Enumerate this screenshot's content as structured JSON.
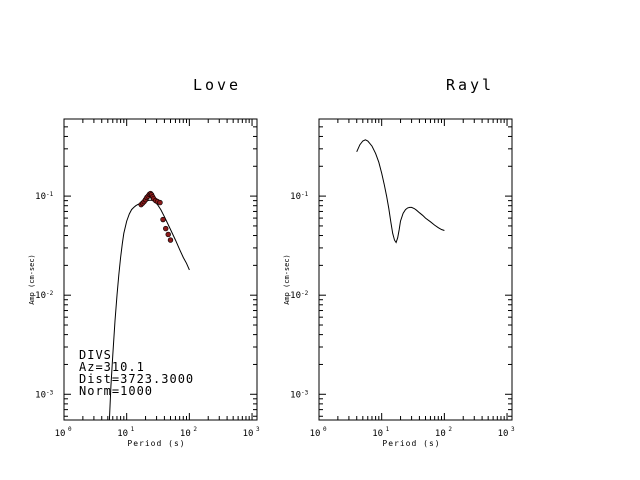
{
  "chart_data": [
    {
      "type": "line",
      "title": "Love",
      "xlabel": "Period (s)",
      "ylabel": "Amp (cm-sec)",
      "xscale": "log",
      "yscale": "log",
      "xlim": [
        1,
        1200
      ],
      "ylim": [
        0.00055,
        0.6
      ],
      "x_ticks": [
        {
          "base": "10",
          "exp": "0"
        },
        {
          "base": "10",
          "exp": "1"
        },
        {
          "base": "10",
          "exp": "2"
        },
        {
          "base": "10",
          "exp": "3"
        }
      ],
      "y_ticks": [
        {
          "base": "10",
          "exp": "-1",
          "value": 0.1
        },
        {
          "base": "10",
          "exp": "-2",
          "value": 0.01
        },
        {
          "base": "10",
          "exp": "-3",
          "value": 0.001
        }
      ],
      "series": [
        {
          "kind": "line",
          "x": [
            5.3,
            5.6,
            6,
            6.5,
            7,
            7.5,
            8,
            8.5,
            9,
            10,
            11,
            12,
            13,
            14,
            15,
            17,
            19,
            21,
            23,
            25,
            28,
            31,
            35,
            40,
            45,
            50,
            60,
            70,
            80,
            90,
            100
          ],
          "y": [
            0.00055,
            0.0012,
            0.0025,
            0.0055,
            0.01,
            0.016,
            0.024,
            0.033,
            0.042,
            0.056,
            0.066,
            0.073,
            0.077,
            0.08,
            0.082,
            0.085,
            0.088,
            0.09,
            0.091,
            0.091,
            0.088,
            0.082,
            0.073,
            0.062,
            0.053,
            0.046,
            0.036,
            0.029,
            0.024,
            0.021,
            0.018
          ]
        },
        {
          "kind": "points",
          "x": [
            17,
            18,
            19,
            20,
            21,
            22,
            23,
            24,
            25,
            26,
            27,
            29,
            31,
            34,
            38,
            42,
            46,
            50
          ],
          "y": [
            0.082,
            0.085,
            0.088,
            0.092,
            0.097,
            0.1,
            0.104,
            0.106,
            0.103,
            0.098,
            0.094,
            0.09,
            0.088,
            0.086,
            0.058,
            0.047,
            0.041,
            0.036
          ]
        }
      ],
      "annotations": [
        "DIVS",
        "Az=310.1",
        "Dist=3723.3000",
        "Norm=1000"
      ]
    },
    {
      "type": "line",
      "title": "Rayl",
      "xlabel": "Period (s)",
      "ylabel": "Amp (cm-sec)",
      "xscale": "log",
      "yscale": "log",
      "xlim": [
        1,
        1200
      ],
      "ylim": [
        0.00055,
        0.6
      ],
      "x_ticks": [
        {
          "base": "10",
          "exp": "0"
        },
        {
          "base": "10",
          "exp": "1"
        },
        {
          "base": "10",
          "exp": "2"
        },
        {
          "base": "10",
          "exp": "3"
        }
      ],
      "y_ticks": [
        {
          "base": "10",
          "exp": "-1",
          "value": 0.1
        },
        {
          "base": "10",
          "exp": "-2",
          "value": 0.01
        },
        {
          "base": "10",
          "exp": "-3",
          "value": 0.001
        }
      ],
      "series": [
        {
          "kind": "line",
          "x": [
            4,
            4.5,
            5,
            5.5,
            6,
            7,
            8,
            9,
            10,
            11,
            12,
            13,
            14,
            15,
            16,
            17,
            18,
            19,
            20,
            22,
            24,
            26,
            28,
            30,
            33,
            36,
            40,
            45,
            50,
            60,
            70,
            80,
            90,
            100
          ],
          "y": [
            0.28,
            0.33,
            0.36,
            0.37,
            0.36,
            0.32,
            0.27,
            0.22,
            0.17,
            0.13,
            0.1,
            0.075,
            0.055,
            0.042,
            0.036,
            0.034,
            0.038,
            0.046,
            0.056,
            0.067,
            0.073,
            0.076,
            0.077,
            0.077,
            0.075,
            0.072,
            0.068,
            0.064,
            0.06,
            0.055,
            0.051,
            0.048,
            0.046,
            0.045
          ]
        }
      ],
      "annotations": []
    }
  ]
}
